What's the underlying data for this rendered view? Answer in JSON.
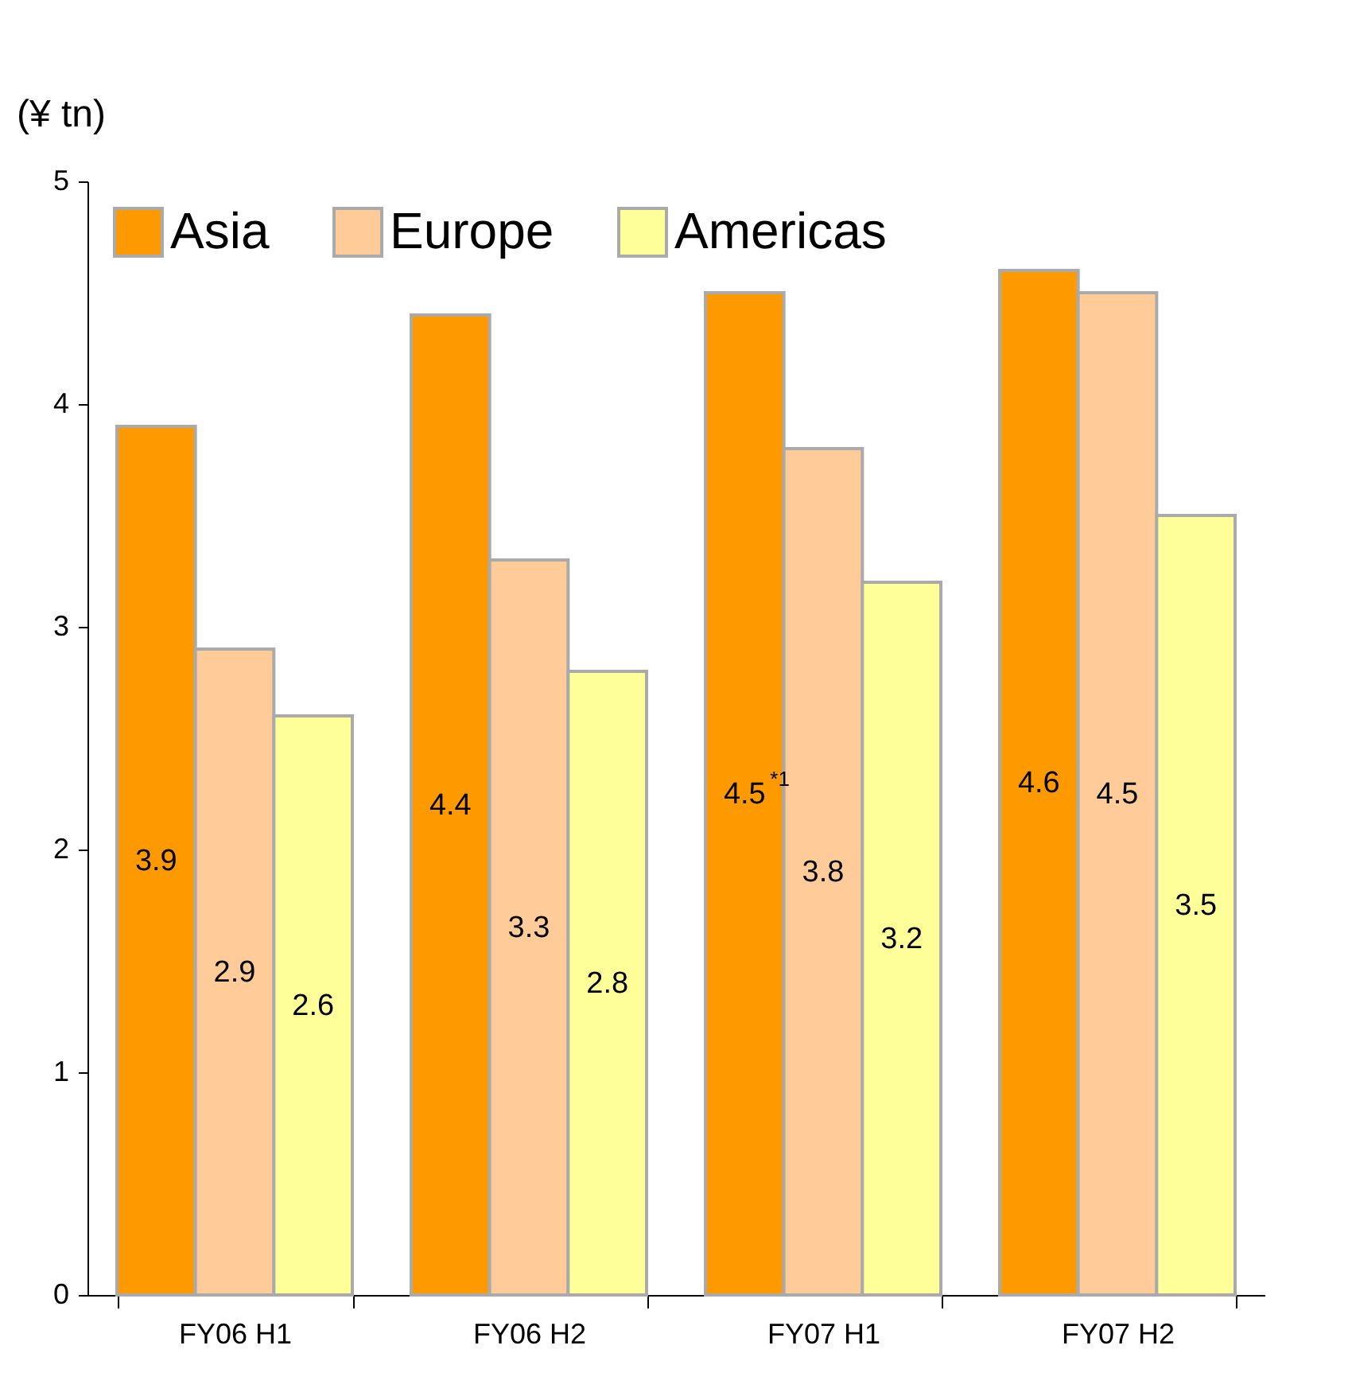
{
  "chart_data": {
    "type": "bar",
    "ylabel": "(¥ tn)",
    "categories": [
      "FY06 H1",
      "FY06 H2",
      "FY07 H1",
      "FY07 H2"
    ],
    "series": [
      {
        "name": "Asia",
        "color": "#ff9900",
        "values": [
          3.9,
          4.4,
          4.5,
          4.6
        ],
        "value_labels": [
          "3.9",
          "4.4",
          "4.5$^{*1}$",
          "4.6"
        ]
      },
      {
        "name": "Europe",
        "color": "#ffcc99",
        "values": [
          2.9,
          3.3,
          3.8,
          4.5
        ],
        "value_labels": [
          "2.9",
          "3.3",
          "3.8",
          "4.5"
        ]
      },
      {
        "name": "Americas",
        "color": "#ffff99",
        "values": [
          2.6,
          2.8,
          3.2,
          3.5
        ],
        "value_labels": [
          "2.6",
          "2.8",
          "3.2",
          "3.5"
        ]
      }
    ],
    "ylim": [
      0,
      5
    ],
    "yticks": [
      0,
      1,
      2,
      3,
      4,
      5
    ],
    "legend": "top left",
    "grid": false
  }
}
